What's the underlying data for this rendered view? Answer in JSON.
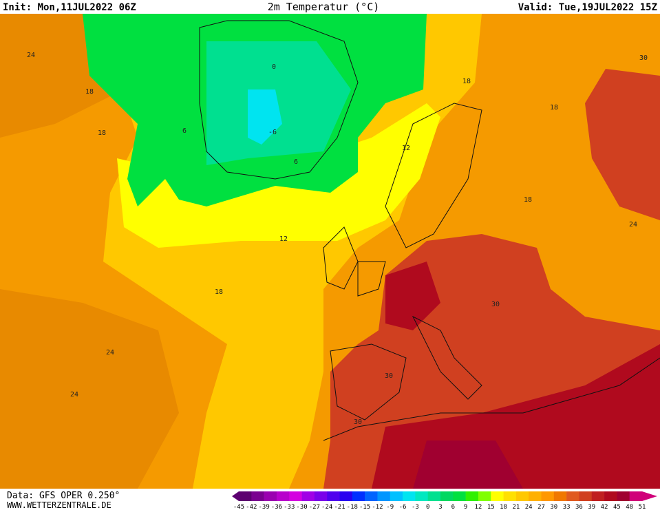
{
  "header": {
    "init": "Init: Mon,11JUL2022 06Z",
    "title": "2m Temperatur (°C)",
    "valid": "Valid: Tue,19JUL2022 15Z"
  },
  "footer": {
    "data": "Data: GFS OPER 0.250°",
    "site": "WWW.WETTERZENTRALE.DE"
  },
  "contour_labels": [
    "24",
    "18",
    "18",
    "0",
    "-6",
    "6",
    "6",
    "18",
    "18",
    "30",
    "12",
    "18",
    "12",
    "18",
    "24",
    "24",
    "30",
    "30",
    "30",
    "24"
  ],
  "legend": {
    "labels": [
      -45,
      -42,
      -39,
      -36,
      -33,
      -30,
      -27,
      -24,
      -21,
      -18,
      -15,
      -12,
      -9,
      -6,
      -3,
      0,
      3,
      6,
      9,
      12,
      15,
      18,
      21,
      24,
      27,
      30,
      33,
      36,
      39,
      42,
      45,
      48,
      51
    ],
    "colors": [
      "#5c0070",
      "#7a0090",
      "#9a00b0",
      "#b800cc",
      "#d400e0",
      "#a000e6",
      "#7a00ea",
      "#5000ee",
      "#2a00f0",
      "#0030ff",
      "#0064ff",
      "#0096ff",
      "#00c0ff",
      "#00e4f0",
      "#00e8c0",
      "#00e090",
      "#00d860",
      "#00e040",
      "#30f000",
      "#80ff00",
      "#ffff00",
      "#ffe000",
      "#ffc800",
      "#ffb000",
      "#ff9800",
      "#f07800",
      "#e05a20",
      "#d04020",
      "#c02020",
      "#b00a1e",
      "#a00030",
      "#d0007a"
    ]
  }
}
